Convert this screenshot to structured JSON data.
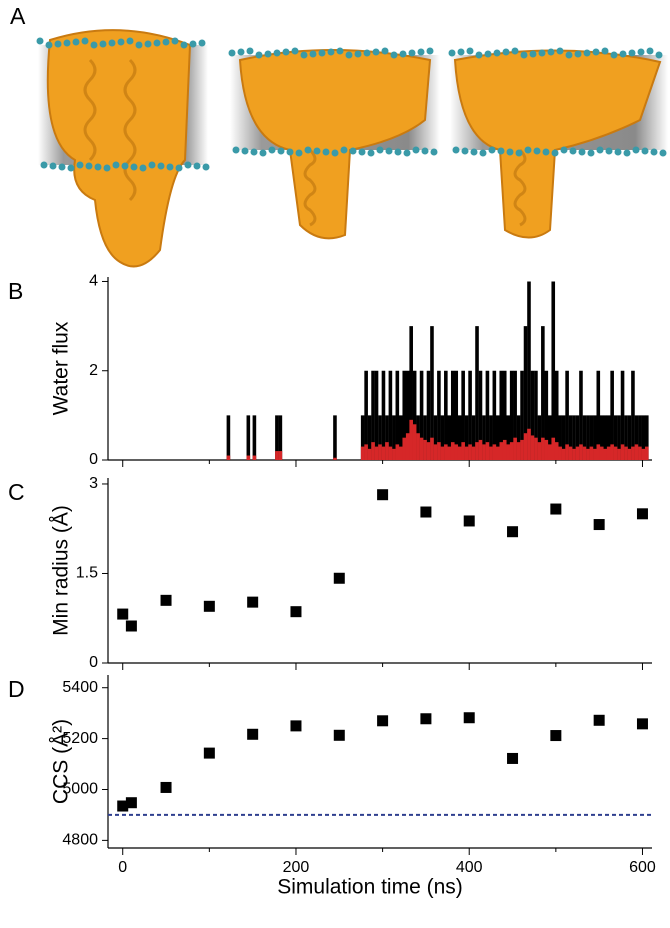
{
  "panel_a_label": "A",
  "chart_data": [
    {
      "type": "impulse",
      "panel": "B",
      "ylabel": "Water flux",
      "xlim": [
        -17,
        611
      ],
      "xticks": [
        0,
        200,
        400,
        600
      ],
      "xminor": [
        100,
        300,
        500
      ],
      "xtick_labels": false,
      "ylim": [
        0,
        4.1
      ],
      "yticks": [
        0,
        2,
        4
      ],
      "x": [
        122,
        145,
        152,
        178,
        182,
        245,
        277,
        281,
        285,
        289,
        293,
        297,
        301,
        305,
        309,
        313,
        317,
        321,
        325,
        329,
        333,
        337,
        341,
        345,
        349,
        353,
        357,
        361,
        365,
        369,
        373,
        377,
        381,
        385,
        389,
        393,
        397,
        401,
        405,
        409,
        413,
        417,
        421,
        425,
        429,
        433,
        437,
        441,
        445,
        449,
        453,
        457,
        461,
        465,
        469,
        473,
        477,
        481,
        485,
        489,
        493,
        497,
        501,
        505,
        509,
        513,
        517,
        521,
        525,
        529,
        533,
        537,
        541,
        545,
        549,
        553,
        557,
        561,
        565,
        569,
        573,
        577,
        581,
        585,
        589,
        593,
        597,
        601,
        605
      ],
      "series": [
        {
          "color": "#000000",
          "values": [
            1,
            1,
            1,
            1,
            1,
            1,
            1,
            2,
            1,
            2,
            2,
            1,
            2,
            1,
            2,
            1,
            2,
            1,
            2,
            2,
            3,
            2,
            1,
            2,
            1,
            2,
            3,
            1,
            2,
            1,
            2,
            1,
            2,
            2,
            1,
            2,
            1,
            2,
            1,
            3,
            2,
            1,
            2,
            1,
            2,
            1,
            2,
            2,
            1,
            2,
            2,
            1,
            2,
            3,
            4,
            2,
            2,
            1,
            3,
            2,
            1,
            4,
            2,
            1,
            1,
            2,
            1,
            1,
            1,
            2,
            1,
            1,
            1,
            1,
            2,
            1,
            1,
            1,
            2,
            1,
            1,
            2,
            1,
            1,
            2,
            1,
            1,
            1,
            1
          ]
        },
        {
          "color": "#d62728",
          "values": [
            0.1,
            0.1,
            0.1,
            0.2,
            0.2,
            0.05,
            0.3,
            0.35,
            0.25,
            0.4,
            0.3,
            0.35,
            0.3,
            0.4,
            0.3,
            0.25,
            0.35,
            0.3,
            0.5,
            0.6,
            0.9,
            0.8,
            0.6,
            0.5,
            0.45,
            0.4,
            0.5,
            0.35,
            0.4,
            0.3,
            0.35,
            0.3,
            0.4,
            0.35,
            0.3,
            0.4,
            0.3,
            0.35,
            0.3,
            0.4,
            0.45,
            0.35,
            0.4,
            0.3,
            0.35,
            0.3,
            0.4,
            0.45,
            0.35,
            0.4,
            0.5,
            0.4,
            0.45,
            0.6,
            0.7,
            0.55,
            0.5,
            0.4,
            0.5,
            0.45,
            0.35,
            0.5,
            0.4,
            0.3,
            0.25,
            0.35,
            0.3,
            0.25,
            0.3,
            0.35,
            0.3,
            0.25,
            0.3,
            0.25,
            0.35,
            0.3,
            0.25,
            0.3,
            0.35,
            0.3,
            0.25,
            0.35,
            0.3,
            0.25,
            0.3,
            0.35,
            0.3,
            0.25,
            0.3
          ]
        }
      ]
    },
    {
      "type": "scatter",
      "panel": "C",
      "ylabel": "Min radius (Å)",
      "xlim": [
        -17,
        611
      ],
      "xticks": [
        0,
        200,
        400,
        600
      ],
      "xminor": [
        100,
        300,
        500
      ],
      "xtick_labels": false,
      "ylim": [
        0,
        3.1
      ],
      "yticks": [
        0,
        1.5,
        3
      ],
      "x": [
        0,
        10,
        50,
        100,
        150,
        200,
        250,
        300,
        350,
        400,
        450,
        500,
        550,
        600
      ],
      "series": [
        {
          "color": "#000000",
          "values": [
            0.82,
            0.62,
            1.05,
            0.95,
            1.02,
            0.86,
            1.42,
            2.82,
            2.53,
            2.38,
            2.2,
            2.58,
            2.32,
            2.5
          ]
        }
      ]
    },
    {
      "type": "scatter",
      "panel": "D",
      "ylabel": "CCS (Å²)",
      "xlabel": "Simulation time (ns)",
      "xlim": [
        -17,
        611
      ],
      "xticks": [
        0,
        200,
        400,
        600
      ],
      "xminor": [
        100,
        300,
        500
      ],
      "ylim": [
        4770,
        5450
      ],
      "yticks": [
        4800,
        5000,
        5200,
        5400
      ],
      "x": [
        0,
        10,
        50,
        100,
        150,
        200,
        250,
        300,
        350,
        400,
        450,
        500,
        550,
        600
      ],
      "series": [
        {
          "color": "#000000",
          "values": [
            4935,
            4948,
            5008,
            5143,
            5217,
            5250,
            5213,
            5270,
            5278,
            5282,
            5122,
            5212,
            5272,
            5258
          ]
        }
      ],
      "reference_line": {
        "value": 4900,
        "color": "#2e3f8f"
      }
    }
  ]
}
